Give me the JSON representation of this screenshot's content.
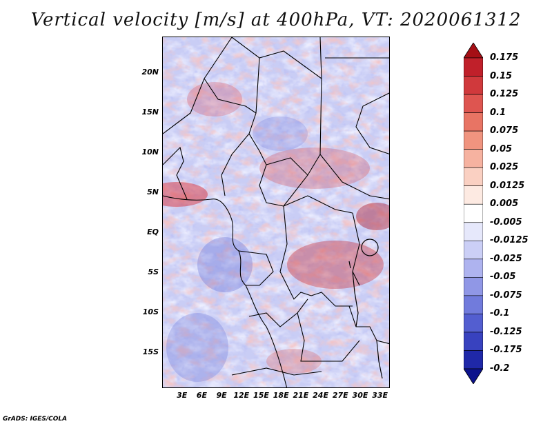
{
  "title": "Vertical velocity [m/s] at 400hPa, VT: 2020061312",
  "credit": "GrADS: IGES/COLA",
  "lat_labels": [
    "20N",
    "15N",
    "10N",
    "5N",
    "EQ",
    "5S",
    "10S",
    "15S"
  ],
  "lon_labels": [
    "3E",
    "6E",
    "9E",
    "12E",
    "15E",
    "18E",
    "21E",
    "24E",
    "27E",
    "30E",
    "33E"
  ],
  "colorbar": {
    "labels": [
      "0.175",
      "0.15",
      "0.125",
      "0.1",
      "0.075",
      "0.05",
      "0.025",
      "0.0125",
      "0.005",
      "-0.005",
      "-0.0125",
      "-0.025",
      "-0.05",
      "-0.075",
      "-0.1",
      "-0.125",
      "-0.175",
      "-0.2"
    ],
    "colors": [
      "#a50f15",
      "#c0202a",
      "#d0393c",
      "#de5550",
      "#e87464",
      "#f0947f",
      "#f6b2a0",
      "#fad0c2",
      "#fdeae2",
      "#ffffff",
      "#e6e8fb",
      "#cbcff6",
      "#aeb3ef",
      "#9097e6",
      "#717bdc",
      "#535ed0",
      "#3842bf",
      "#1f28a8",
      "#0c128c"
    ]
  },
  "map": {
    "lat_range": [
      -19.5,
      24.5
    ],
    "lon_range": [
      0,
      34.5
    ],
    "lat_ticks": [
      20,
      15,
      10,
      5,
      0,
      -5,
      -10,
      -15
    ],
    "lon_ticks": [
      3,
      6,
      9,
      12,
      15,
      18,
      21,
      24,
      27,
      30,
      33
    ]
  }
}
